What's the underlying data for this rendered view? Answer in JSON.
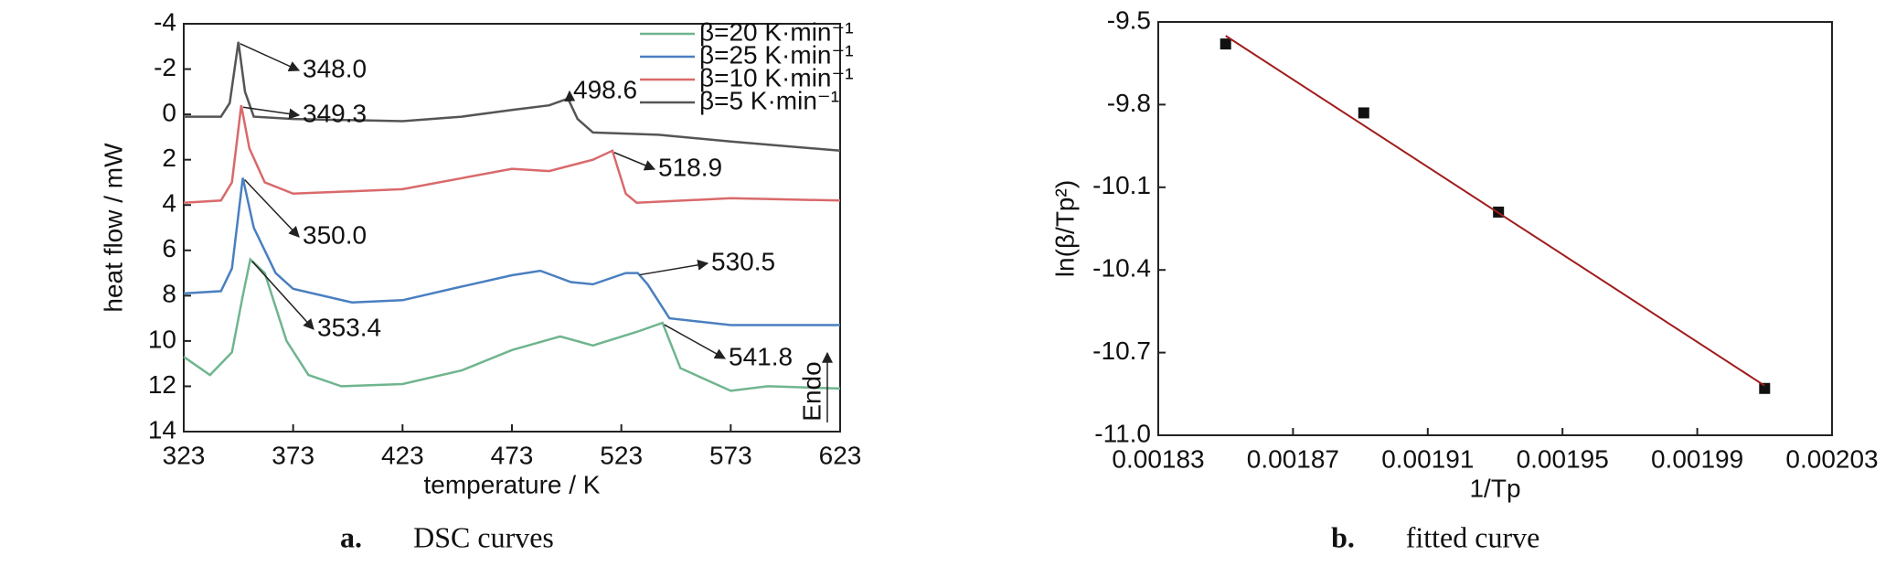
{
  "chart_data": [
    {
      "type": "line",
      "xlabel": "temperature / K",
      "ylabel": "heat flow / mW",
      "caption_letter": "a.",
      "caption": "DSC curves",
      "xlim": [
        323,
        623
      ],
      "xticks": [
        323,
        373,
        423,
        473,
        523,
        573,
        623
      ],
      "ylim": [
        -4,
        14
      ],
      "yticks": [
        -4,
        -2,
        0,
        2,
        4,
        6,
        8,
        10,
        12,
        14
      ],
      "invert_y": true,
      "endo_label": "Endo",
      "series": [
        {
          "name": "β=20 K·min⁻¹",
          "color": "#6fb58e",
          "x": [
            323,
            335,
            345,
            350,
            353.4,
            360,
            370,
            380,
            395,
            423,
            450,
            473,
            495,
            510,
            530,
            541.8,
            550,
            573,
            590,
            623
          ],
          "values": [
            10.7,
            11.5,
            10.5,
            8,
            6.4,
            7,
            10,
            11.5,
            12,
            11.9,
            11.3,
            10.4,
            9.8,
            10.2,
            9.6,
            9.2,
            11.2,
            12.2,
            12,
            12.1
          ]
        },
        {
          "name": "β=25 K·min⁻¹",
          "color": "#4a7fc0",
          "x": [
            323,
            340,
            345,
            350,
            355,
            365,
            373,
            400,
            423,
            450,
            473,
            486,
            500,
            510,
            525,
            530.5,
            535,
            545,
            573,
            623
          ],
          "values": [
            7.9,
            7.8,
            6.8,
            2.8,
            5,
            7,
            7.7,
            8.3,
            8.2,
            7.6,
            7.1,
            6.9,
            7.4,
            7.5,
            7.0,
            7.0,
            7.5,
            9.0,
            9.3,
            9.3
          ]
        },
        {
          "name": "β=10 K·min⁻¹",
          "color": "#d9696b",
          "x": [
            323,
            340,
            345,
            349.3,
            353,
            360,
            373,
            423,
            473,
            490,
            510,
            518.9,
            525,
            530,
            573,
            623
          ],
          "values": [
            3.9,
            3.8,
            3,
            -0.4,
            1.5,
            3,
            3.5,
            3.3,
            2.4,
            2.5,
            2.0,
            1.6,
            3.5,
            3.9,
            3.7,
            3.8
          ]
        },
        {
          "name": "β=5 K·min⁻¹",
          "color": "#555555",
          "x": [
            323,
            340,
            344,
            348,
            351,
            355,
            373,
            423,
            450,
            473,
            490,
            498.6,
            503,
            510,
            540,
            573,
            623
          ],
          "values": [
            0.1,
            0.1,
            -0.5,
            -3.2,
            -1,
            0.1,
            0.2,
            0.3,
            0.1,
            -0.2,
            -0.4,
            -0.7,
            0.2,
            0.8,
            0.9,
            1.2,
            1.6
          ]
        }
      ],
      "annotations": [
        "348.0",
        "498.6",
        "349.3",
        "518.9",
        "350.0",
        "530.5",
        "353.4",
        "541.8"
      ]
    },
    {
      "type": "scatter",
      "xlabel": "1/Tp",
      "ylabel": "ln(β/Tp²)",
      "caption_letter": "b.",
      "caption": "fitted curve",
      "xlim": [
        0.00183,
        0.00203
      ],
      "xticks": [
        0.00183,
        0.00187,
        0.00191,
        0.00195,
        0.00199,
        0.00203
      ],
      "ylim": [
        -11,
        -9.5
      ],
      "yticks": [
        -9.5,
        -9.8,
        -10.1,
        -10.4,
        -10.7,
        {
          "value": -11,
          "label": "-11.0"
        }
      ],
      "series": [
        {
          "color": "#111111",
          "marker": "square",
          "x": [
            0.00185,
            0.001891,
            0.001931,
            0.00201
          ],
          "values": [
            -9.58,
            -9.83,
            -10.19,
            -10.83
          ]
        },
        {
          "color": "#a01c1c",
          "marker": "line",
          "x": [
            0.00185,
            0.00201
          ],
          "values": [
            -9.55,
            -10.82
          ]
        }
      ]
    }
  ]
}
